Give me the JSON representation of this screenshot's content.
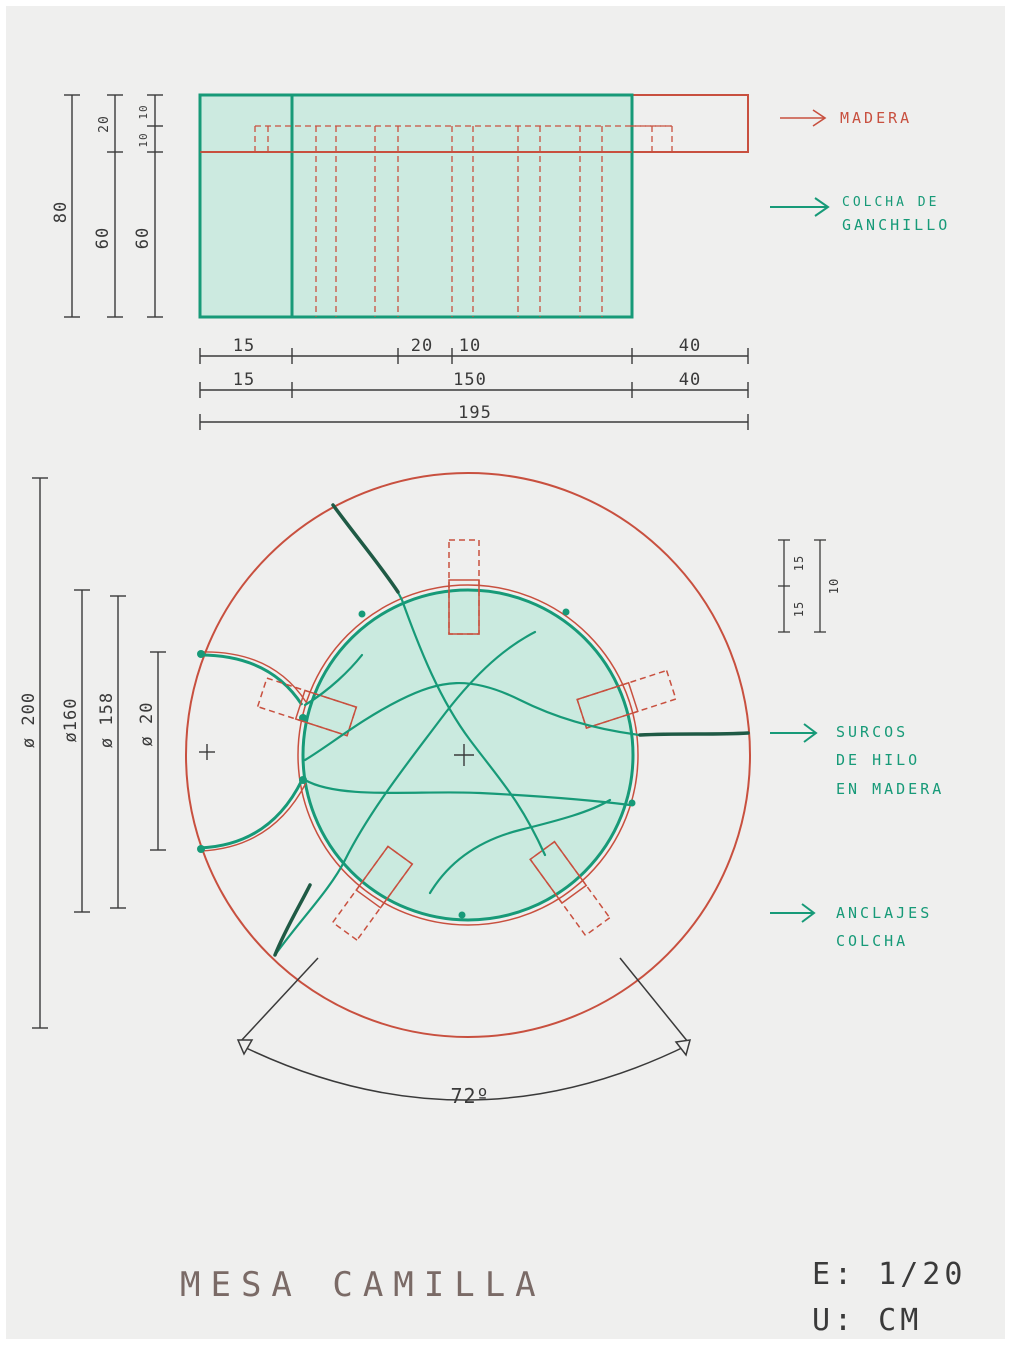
{
  "colors": {
    "wood": "#c8503f",
    "quilt": "#179a78",
    "quilt_fill": "#c5e9dd",
    "pencil": "#3a3a3a",
    "paper": "#efefee"
  },
  "elevation": {
    "height_dims": [
      "80",
      "60",
      "60",
      "20",
      "10",
      "10"
    ],
    "bottom_dims": {
      "row1": [
        "15",
        "20",
        "10",
        "40"
      ],
      "row2": [
        "15",
        "150",
        "40"
      ],
      "total": "195"
    }
  },
  "plan": {
    "diameter_dims": [
      "ø 200",
      "ø160",
      "ø 158",
      "ø 20"
    ],
    "slot_dims": [
      "15",
      "15",
      "10"
    ],
    "angle": "72º"
  },
  "labels": {
    "madera": "MADERA",
    "colcha": [
      "COLCHA DE",
      "GANCHILLO"
    ],
    "surcos": [
      "SURCOS",
      "DE HILO",
      "EN MADERA"
    ],
    "anclajes": [
      "ANCLAJES",
      "COLCHA"
    ]
  },
  "footer": {
    "title": "MESA CAMILLA",
    "scale": "E: 1/20",
    "units": "U: CM"
  }
}
